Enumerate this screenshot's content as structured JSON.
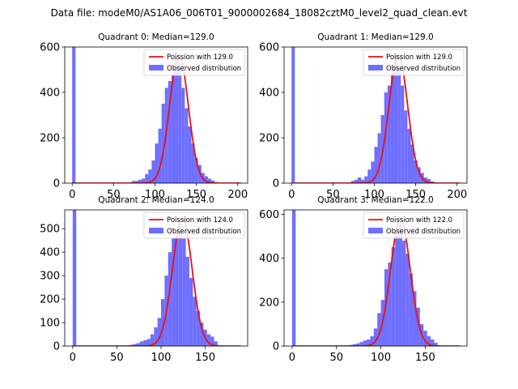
{
  "figure": {
    "suptitle": "Data file: modeM0/AS1A06_006T01_9000002684_18082cztM0_level2_quad_clean.evt"
  },
  "colors": {
    "hist": "#6f6fff",
    "fit": "#e81010",
    "axes": "#000000"
  },
  "chart_data": [
    {
      "type": "bar",
      "title": "Quadrant 0: Median=129.0",
      "median": 129.0,
      "xlim": [
        -9,
        212
      ],
      "ylim": [
        0,
        600
      ],
      "xticks": [
        0,
        50,
        100,
        150,
        200
      ],
      "yticks": [
        0,
        200,
        400,
        600
      ],
      "bin_width": 4,
      "bin_starts": [
        0,
        64,
        68,
        72,
        76,
        80,
        84,
        88,
        92,
        96,
        100,
        104,
        108,
        112,
        116,
        120,
        124,
        128,
        132,
        136,
        140,
        144,
        148,
        152,
        156,
        160,
        164,
        168,
        172
      ],
      "counts": [
        600,
        2,
        3,
        10,
        10,
        15,
        20,
        40,
        60,
        100,
        175,
        240,
        350,
        420,
        450,
        480,
        560,
        530,
        420,
        330,
        250,
        175,
        110,
        80,
        45,
        30,
        20,
        12,
        5
      ],
      "fit": {
        "mu": 129.0,
        "sigma": 11.3,
        "peak": 565
      },
      "legend": {
        "fit_label": "Poission with 129.0",
        "hist_label": "Observed distribution",
        "position": "upper right"
      }
    },
    {
      "type": "bar",
      "title": "Quadrant 1: Median=129.0",
      "median": 129.0,
      "xlim": [
        -9,
        212
      ],
      "ylim": [
        0,
        600
      ],
      "xticks": [
        0,
        50,
        100,
        150,
        200
      ],
      "yticks": [
        0,
        200,
        400,
        600
      ],
      "bin_width": 4,
      "bin_starts": [
        0,
        64,
        68,
        72,
        76,
        80,
        84,
        88,
        92,
        96,
        100,
        104,
        108,
        112,
        116,
        120,
        124,
        128,
        132,
        136,
        140,
        144,
        148,
        152,
        156,
        160,
        164,
        168,
        172
      ],
      "counts": [
        600,
        2,
        3,
        10,
        15,
        25,
        15,
        30,
        60,
        95,
        160,
        220,
        300,
        400,
        430,
        480,
        570,
        510,
        430,
        320,
        240,
        170,
        100,
        70,
        45,
        25,
        18,
        8,
        3
      ],
      "fit": {
        "mu": 129.0,
        "sigma": 11.3,
        "peak": 565
      },
      "legend": {
        "fit_label": "Poission with 129.0",
        "hist_label": "Observed distribution",
        "position": "upper right"
      }
    },
    {
      "type": "bar",
      "title": "Quadrant 2: Median=124.0",
      "median": 124.0,
      "xlim": [
        -9,
        198
      ],
      "ylim": [
        0,
        580
      ],
      "xticks": [
        0,
        50,
        100,
        150
      ],
      "yticks": [
        0,
        100,
        200,
        300,
        400,
        500
      ],
      "bin_width": 4,
      "bin_starts": [
        0,
        60,
        64,
        68,
        72,
        76,
        80,
        84,
        88,
        92,
        96,
        100,
        104,
        108,
        112,
        116,
        120,
        124,
        128,
        132,
        136,
        140,
        144,
        148,
        152,
        156,
        160
      ],
      "counts": [
        580,
        3,
        5,
        8,
        12,
        20,
        25,
        30,
        50,
        80,
        120,
        200,
        300,
        400,
        460,
        470,
        520,
        460,
        380,
        290,
        210,
        150,
        100,
        70,
        50,
        40,
        20
      ],
      "fit": {
        "mu": 124.0,
        "sigma": 11.1,
        "peak": 545
      },
      "legend": {
        "fit_label": "Poission with 124.0",
        "hist_label": "Observed distribution",
        "position": "upper right"
      }
    },
    {
      "type": "bar",
      "title": "Quadrant 3: Median=122.0",
      "median": 122.0,
      "xlim": [
        -9,
        197
      ],
      "ylim": [
        0,
        620
      ],
      "xticks": [
        0,
        50,
        100,
        150
      ],
      "yticks": [
        0,
        200,
        400,
        600
      ],
      "bin_width": 4,
      "bin_starts": [
        0,
        60,
        64,
        68,
        72,
        76,
        80,
        84,
        88,
        92,
        96,
        100,
        104,
        108,
        112,
        116,
        120,
        124,
        128,
        132,
        136,
        140,
        144,
        148,
        152,
        156,
        160
      ],
      "counts": [
        620,
        2,
        5,
        8,
        12,
        18,
        25,
        30,
        45,
        80,
        150,
        210,
        350,
        380,
        450,
        500,
        560,
        480,
        420,
        330,
        250,
        175,
        100,
        70,
        45,
        30,
        15
      ],
      "fit": {
        "mu": 122.0,
        "sigma": 11.0,
        "peak": 580
      },
      "legend": {
        "fit_label": "Poission with 122.0",
        "hist_label": "Observed distribution",
        "position": "upper right"
      }
    }
  ]
}
